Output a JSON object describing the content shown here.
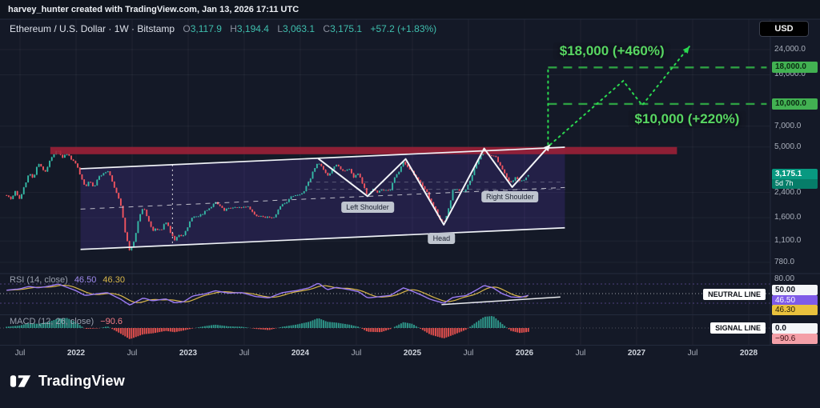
{
  "attribution": {
    "text": "harvey_hunter created with TradingView.com, Jan 13, 2026 17:11 UTC"
  },
  "header": {
    "title": "Ethereum / U.S. Dollar · 1W · Bitstamp",
    "ohlc": [
      {
        "label": "O",
        "value": "3,117.9"
      },
      {
        "label": "H",
        "value": "3,194.4"
      },
      {
        "label": "L",
        "value": "3,063.1"
      },
      {
        "label": "C",
        "value": "3,175.1"
      }
    ],
    "change": "+57.2 (+1.83%)",
    "currency": "USD"
  },
  "legends": {
    "rsi_title": "RSI (14, close)",
    "rsi_value": "46.50",
    "rsi_ma": "46.30",
    "macd_title": "MACD (12, 26, close)",
    "macd_value": "−90.6",
    "neutral_line": "NEUTRAL LINE",
    "signal_line": "SIGNAL LINE"
  },
  "price_scale": {
    "ticks": [
      {
        "text": "24,000.0",
        "p": 24000
      },
      {
        "text": "16,000.0",
        "p": 16000
      },
      {
        "text": "7,000.0",
        "p": 7000
      },
      {
        "text": "5,000.0",
        "p": 5000
      },
      {
        "text": "2,400.0",
        "p": 2400
      },
      {
        "text": "1,600.0",
        "p": 1600
      },
      {
        "text": "1,100.0",
        "p": 1100
      },
      {
        "text": "780.0",
        "p": 780
      }
    ],
    "badges": [
      {
        "text": "18,000.0",
        "p": 18000,
        "style": "green"
      },
      {
        "text": "10,000.0",
        "p": 10000,
        "style": "green"
      }
    ],
    "current": {
      "text": "3,175.1",
      "p": 3175.1,
      "countdown": "5d 7h"
    }
  },
  "rsi_scale": {
    "ticks": [
      {
        "text": "80.00",
        "v": 80
      }
    ],
    "badges": [
      {
        "text": "50.00",
        "style": "white"
      },
      {
        "text": "46.50",
        "style": "purple"
      },
      {
        "text": "46.30",
        "style": "yellow"
      }
    ]
  },
  "macd_scale": {
    "badges": [
      {
        "text": "0.0",
        "style": "white"
      },
      {
        "text": "−90.6",
        "style": "pink"
      }
    ]
  },
  "time_axis": [
    {
      "label": "Jul",
      "t": 2021.5
    },
    {
      "label": "2022",
      "t": 2022,
      "year": true
    },
    {
      "label": "Jul",
      "t": 2022.5
    },
    {
      "label": "2023",
      "t": 2023,
      "year": true
    },
    {
      "label": "Jul",
      "t": 2023.5
    },
    {
      "label": "2024",
      "t": 2024,
      "year": true
    },
    {
      "label": "Jul",
      "t": 2024.5
    },
    {
      "label": "2025",
      "t": 2025,
      "year": true
    },
    {
      "label": "Jul",
      "t": 2025.5
    },
    {
      "label": "2026",
      "t": 2026,
      "year": true
    },
    {
      "label": "Jul",
      "t": 2026.5
    },
    {
      "label": "2027",
      "t": 2027,
      "year": true
    },
    {
      "label": "Jul",
      "t": 2027.5
    },
    {
      "label": "2028",
      "t": 2028,
      "year": true
    }
  ],
  "footer": {
    "brand": "TradingView"
  },
  "colors": {
    "up": "#35b9a6",
    "down": "#f0545f",
    "target_green": "#2bd850",
    "dash_green": "#2ea043",
    "resistance_red": "#9f2038",
    "rsi_purple": "#9b7bf2",
    "rsi_yellow": "#d9b74a",
    "macd_pos": "#2f9e8f",
    "macd_neg": "#ef5350",
    "white_line": "#eef1f6"
  },
  "chart_data": {
    "type": "candlestick",
    "title": "Ethereum / U.S. Dollar",
    "interval": "1W",
    "exchange": "Bitstamp",
    "scale": "log",
    "x_domain": [
      2021.38,
      2028.2
    ],
    "y_ticks": [
      24000,
      16000,
      7000,
      5000,
      2400,
      1600,
      1100,
      780
    ],
    "last": {
      "open": 3117.9,
      "high": 3194.4,
      "low": 3063.1,
      "close": 3175.1,
      "change": 57.2,
      "change_pct": 1.83,
      "countdown": "5d 7h"
    },
    "price_path": [
      [
        2021.38,
        2320
      ],
      [
        2021.42,
        2120
      ],
      [
        2021.46,
        2450
      ],
      [
        2021.5,
        2160
      ],
      [
        2021.54,
        2700
      ],
      [
        2021.58,
        3260
      ],
      [
        2021.62,
        3060
      ],
      [
        2021.66,
        3850
      ],
      [
        2021.7,
        3550
      ],
      [
        2021.73,
        3380
      ],
      [
        2021.77,
        4080
      ],
      [
        2021.81,
        4500
      ],
      [
        2021.84,
        4800
      ],
      [
        2021.88,
        4150
      ],
      [
        2021.92,
        4550
      ],
      [
        2021.96,
        4050
      ],
      [
        2022.0,
        3760
      ],
      [
        2022.04,
        3180
      ],
      [
        2022.08,
        2620
      ],
      [
        2022.12,
        2920
      ],
      [
        2022.16,
        2620
      ],
      [
        2022.2,
        3050
      ],
      [
        2022.24,
        3280
      ],
      [
        2022.28,
        3460
      ],
      [
        2022.32,
        2900
      ],
      [
        2022.36,
        2380
      ],
      [
        2022.4,
        1960
      ],
      [
        2022.44,
        1250
      ],
      [
        2022.48,
        930
      ],
      [
        2022.52,
        1120
      ],
      [
        2022.56,
        1620
      ],
      [
        2022.6,
        1900
      ],
      [
        2022.64,
        1560
      ],
      [
        2022.68,
        1300
      ],
      [
        2022.72,
        1330
      ],
      [
        2022.76,
        1300
      ],
      [
        2022.8,
        1520
      ],
      [
        2022.84,
        1280
      ],
      [
        2022.88,
        1130
      ],
      [
        2022.92,
        1210
      ],
      [
        2022.96,
        1195
      ],
      [
        2023.0,
        1420
      ],
      [
        2023.04,
        1660
      ],
      [
        2023.08,
        1610
      ],
      [
        2023.12,
        1700
      ],
      [
        2023.16,
        1780
      ],
      [
        2023.2,
        1850
      ],
      [
        2023.24,
        2060
      ],
      [
        2023.28,
        1920
      ],
      [
        2023.32,
        1800
      ],
      [
        2023.36,
        1900
      ],
      [
        2023.4,
        1860
      ],
      [
        2023.44,
        1920
      ],
      [
        2023.48,
        1870
      ],
      [
        2023.52,
        1920
      ],
      [
        2023.56,
        1830
      ],
      [
        2023.6,
        1650
      ],
      [
        2023.64,
        1640
      ],
      [
        2023.68,
        1620
      ],
      [
        2023.72,
        1590
      ],
      [
        2023.76,
        1560
      ],
      [
        2023.8,
        1800
      ],
      [
        2023.84,
        2020
      ],
      [
        2023.88,
        2080
      ],
      [
        2023.92,
        2300
      ],
      [
        2023.96,
        2260
      ],
      [
        2024.0,
        2350
      ],
      [
        2024.04,
        2500
      ],
      [
        2024.08,
        2900
      ],
      [
        2024.12,
        3480
      ],
      [
        2024.16,
        3880
      ],
      [
        2024.2,
        3520
      ],
      [
        2024.24,
        3180
      ],
      [
        2024.28,
        3420
      ],
      [
        2024.32,
        3750
      ],
      [
        2024.36,
        3520
      ],
      [
        2024.4,
        3400
      ],
      [
        2024.44,
        3480
      ],
      [
        2024.48,
        3060
      ],
      [
        2024.52,
        3280
      ],
      [
        2024.56,
        2700
      ],
      [
        2024.6,
        2280
      ],
      [
        2024.64,
        2560
      ],
      [
        2024.68,
        2380
      ],
      [
        2024.72,
        2450
      ],
      [
        2024.76,
        2520
      ],
      [
        2024.8,
        2460
      ],
      [
        2024.84,
        3060
      ],
      [
        2024.88,
        3350
      ],
      [
        2024.92,
        3920
      ],
      [
        2024.96,
        3650
      ],
      [
        2025.0,
        3340
      ],
      [
        2025.04,
        3020
      ],
      [
        2025.08,
        2750
      ],
      [
        2025.12,
        2520
      ],
      [
        2025.16,
        2060
      ],
      [
        2025.2,
        1900
      ],
      [
        2025.24,
        1580
      ],
      [
        2025.28,
        1470
      ],
      [
        2025.32,
        1820
      ],
      [
        2025.36,
        2480
      ],
      [
        2025.4,
        2560
      ],
      [
        2025.44,
        2420
      ],
      [
        2025.48,
        2520
      ],
      [
        2025.52,
        2980
      ],
      [
        2025.56,
        3620
      ],
      [
        2025.6,
        4280
      ],
      [
        2025.64,
        4750
      ],
      [
        2025.68,
        4300
      ],
      [
        2025.72,
        4480
      ],
      [
        2025.76,
        4050
      ],
      [
        2025.8,
        3480
      ],
      [
        2025.84,
        3050
      ],
      [
        2025.88,
        2820
      ],
      [
        2025.92,
        3120
      ],
      [
        2025.96,
        2880
      ],
      [
        2026.0,
        2990
      ],
      [
        2026.04,
        3175.1
      ]
    ],
    "channel": {
      "upper": [
        [
          2022.04,
          3520
        ],
        [
          2026.36,
          4980
        ]
      ],
      "lower": [
        [
          2022.04,
          960
        ],
        [
          2026.36,
          1360
        ]
      ],
      "mid_dashed": true
    },
    "vertical_dotted_white": {
      "t": 2022.86,
      "p1": 1030,
      "p2": 3760
    },
    "grey_dashed_levels": [
      {
        "p": 2840,
        "t1": 2024.07,
        "t2": 2026.36
      },
      {
        "p": 2530,
        "t1": 2024.07,
        "t2": 2026.36
      }
    ],
    "resistance_zone": {
      "p1": 4450,
      "p2": 5000,
      "t1": 2021.77,
      "t2": 2027.36
    },
    "pattern": {
      "name": "inverse head and shoulders",
      "path": [
        [
          2024.16,
          4150
        ],
        [
          2024.6,
          2260
        ],
        [
          2024.94,
          4120
        ],
        [
          2025.28,
          1430
        ],
        [
          2025.64,
          4880
        ],
        [
          2025.89,
          2620
        ],
        [
          2026.23,
          5200
        ]
      ],
      "labels": [
        {
          "text": "Left Shoulder",
          "t": 2024.6,
          "p": 1890
        },
        {
          "text": "Head",
          "t": 2025.26,
          "p": 1150
        },
        {
          "text": "Right Shoulder",
          "t": 2025.87,
          "p": 2230
        }
      ]
    },
    "targets": [
      {
        "label": "$18,000 (+460%)",
        "price": 18000,
        "t1": 2026.21,
        "t2": 2028.16,
        "label_t": 2026.78,
        "label_above": true
      },
      {
        "label": "$10,000 (+220%)",
        "price": 10000,
        "t1": 2026.21,
        "t2": 2028.16,
        "label_t": 2027.45,
        "label_above": false
      }
    ],
    "projection": {
      "dotted_path": [
        [
          2026.23,
          5200
        ],
        [
          2026.88,
          14500
        ],
        [
          2027.05,
          9800
        ],
        [
          2027.47,
          25200
        ]
      ],
      "vertical": {
        "t": 2026.21,
        "p1": 5200,
        "p2": 18000
      }
    },
    "rsi": {
      "length": 14,
      "source": "close",
      "value": 46.5,
      "ma_value": 46.3,
      "levels": [
        80,
        50
      ],
      "trendline": {
        "t1": 2025.26,
        "v1": 27,
        "t2": 2026.32,
        "v2": 43
      },
      "series": [
        [
          2021.38,
          57
        ],
        [
          2021.5,
          60
        ],
        [
          2021.58,
          65
        ],
        [
          2021.66,
          62
        ],
        [
          2021.77,
          66
        ],
        [
          2021.84,
          70
        ],
        [
          2021.92,
          63
        ],
        [
          2022.0,
          56
        ],
        [
          2022.08,
          46
        ],
        [
          2022.2,
          50
        ],
        [
          2022.28,
          52
        ],
        [
          2022.4,
          38
        ],
        [
          2022.48,
          26
        ],
        [
          2022.6,
          41
        ],
        [
          2022.68,
          35
        ],
        [
          2022.8,
          39
        ],
        [
          2022.88,
          31
        ],
        [
          2022.96,
          33
        ],
        [
          2023.04,
          45
        ],
        [
          2023.16,
          50
        ],
        [
          2023.24,
          56
        ],
        [
          2023.36,
          51
        ],
        [
          2023.48,
          52
        ],
        [
          2023.6,
          44
        ],
        [
          2023.72,
          41
        ],
        [
          2023.84,
          52
        ],
        [
          2023.96,
          56
        ],
        [
          2024.08,
          62
        ],
        [
          2024.16,
          72
        ],
        [
          2024.24,
          58
        ],
        [
          2024.32,
          63
        ],
        [
          2024.44,
          58
        ],
        [
          2024.52,
          54
        ],
        [
          2024.6,
          41
        ],
        [
          2024.72,
          44
        ],
        [
          2024.8,
          46
        ],
        [
          2024.92,
          62
        ],
        [
          2025.0,
          55
        ],
        [
          2025.08,
          47
        ],
        [
          2025.16,
          38
        ],
        [
          2025.28,
          30
        ],
        [
          2025.36,
          42
        ],
        [
          2025.48,
          46
        ],
        [
          2025.56,
          56
        ],
        [
          2025.64,
          67
        ],
        [
          2025.72,
          62
        ],
        [
          2025.8,
          50
        ],
        [
          2025.88,
          43
        ],
        [
          2025.96,
          42
        ],
        [
          2026.04,
          46.5
        ]
      ]
    },
    "macd": {
      "fast": 12,
      "slow": 26,
      "source": "close",
      "value": -90.6,
      "series": [
        [
          2021.38,
          30
        ],
        [
          2021.5,
          60
        ],
        [
          2021.58,
          120
        ],
        [
          2021.66,
          100
        ],
        [
          2021.77,
          160
        ],
        [
          2021.84,
          230
        ],
        [
          2021.92,
          240
        ],
        [
          2022.0,
          140
        ],
        [
          2022.08,
          -20
        ],
        [
          2022.2,
          -10
        ],
        [
          2022.28,
          40
        ],
        [
          2022.4,
          -140
        ],
        [
          2022.48,
          -270
        ],
        [
          2022.6,
          -150
        ],
        [
          2022.68,
          -130
        ],
        [
          2022.8,
          -70
        ],
        [
          2022.88,
          -100
        ],
        [
          2022.96,
          -60
        ],
        [
          2023.04,
          -10
        ],
        [
          2023.16,
          50
        ],
        [
          2023.24,
          80
        ],
        [
          2023.36,
          40
        ],
        [
          2023.48,
          30
        ],
        [
          2023.6,
          -20
        ],
        [
          2023.72,
          -50
        ],
        [
          2023.84,
          30
        ],
        [
          2023.96,
          80
        ],
        [
          2024.08,
          150
        ],
        [
          2024.16,
          240
        ],
        [
          2024.24,
          150
        ],
        [
          2024.32,
          130
        ],
        [
          2024.44,
          80
        ],
        [
          2024.52,
          30
        ],
        [
          2024.6,
          -90
        ],
        [
          2024.72,
          -100
        ],
        [
          2024.8,
          -30
        ],
        [
          2024.92,
          140
        ],
        [
          2025.0,
          100
        ],
        [
          2025.08,
          -30
        ],
        [
          2025.16,
          -160
        ],
        [
          2025.28,
          -250
        ],
        [
          2025.36,
          -170
        ],
        [
          2025.48,
          -40
        ],
        [
          2025.56,
          120
        ],
        [
          2025.64,
          270
        ],
        [
          2025.72,
          290
        ],
        [
          2025.8,
          100
        ],
        [
          2025.88,
          -70
        ],
        [
          2025.96,
          -120
        ],
        [
          2026.04,
          -90.6
        ]
      ]
    }
  }
}
